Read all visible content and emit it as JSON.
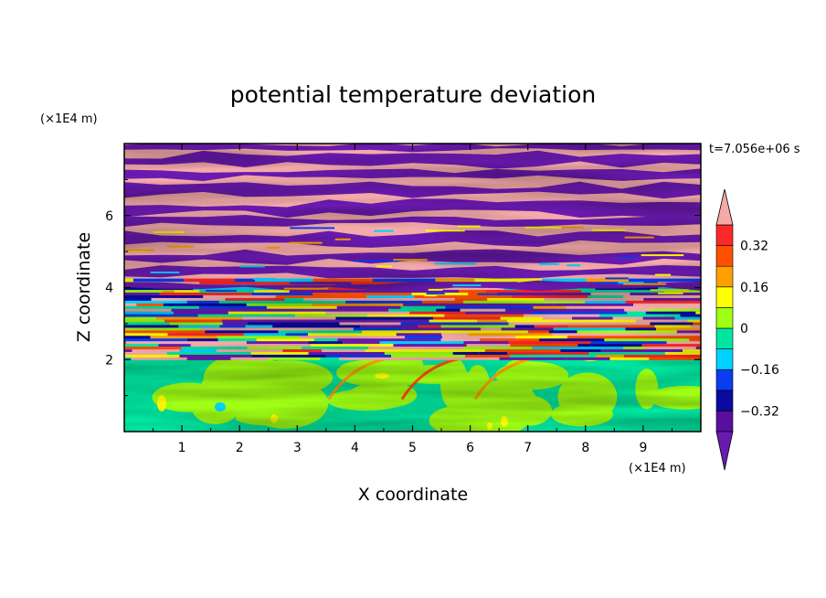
{
  "chart_data": {
    "type": "heatmap",
    "title": "potential temperature deviation",
    "xlabel": "X coordinate",
    "ylabel": "Z coordinate",
    "x_units": "(×1E4 m)",
    "y_units": "(×1E4 m)",
    "time_label": "t=7.056e+06 s",
    "xlim": [
      0,
      10
    ],
    "ylim": [
      0,
      8
    ],
    "x_ticks": [
      1,
      2,
      3,
      4,
      5,
      6,
      7,
      8,
      9
    ],
    "y_ticks": [
      2,
      4,
      6
    ],
    "colorbar": {
      "levels": [
        -0.4,
        -0.32,
        -0.24,
        -0.16,
        -0.08,
        0,
        0.08,
        0.16,
        0.24,
        0.32,
        0.4
      ],
      "tick_values": [
        0.32,
        0.16,
        0,
        -0.16,
        -0.32
      ],
      "tick_labels": [
        "0.32",
        "0.16",
        "0",
        "−0.16",
        "−0.32"
      ],
      "colors": [
        "#5a0fa0",
        "#0a0aa0",
        "#0a3cf0",
        "#00d2ff",
        "#00e6a0",
        "#a0ff14",
        "#ffff00",
        "#ffa000",
        "#ff5000",
        "#ff2828"
      ],
      "under_color": "#6a1ab0",
      "over_color": "#f5aaaa",
      "extend": "both"
    },
    "regions": [
      {
        "z_range": [
          0,
          2
        ],
        "pattern": "mostly green/lime with small yellow, cyan patches"
      },
      {
        "z_range": [
          2,
          4
        ],
        "pattern": "strongly mixed bands of all colours"
      },
      {
        "z_range": [
          4,
          8
        ],
        "pattern": "alternating pink (above max) and purple (below min) horizontal layers"
      }
    ]
  }
}
